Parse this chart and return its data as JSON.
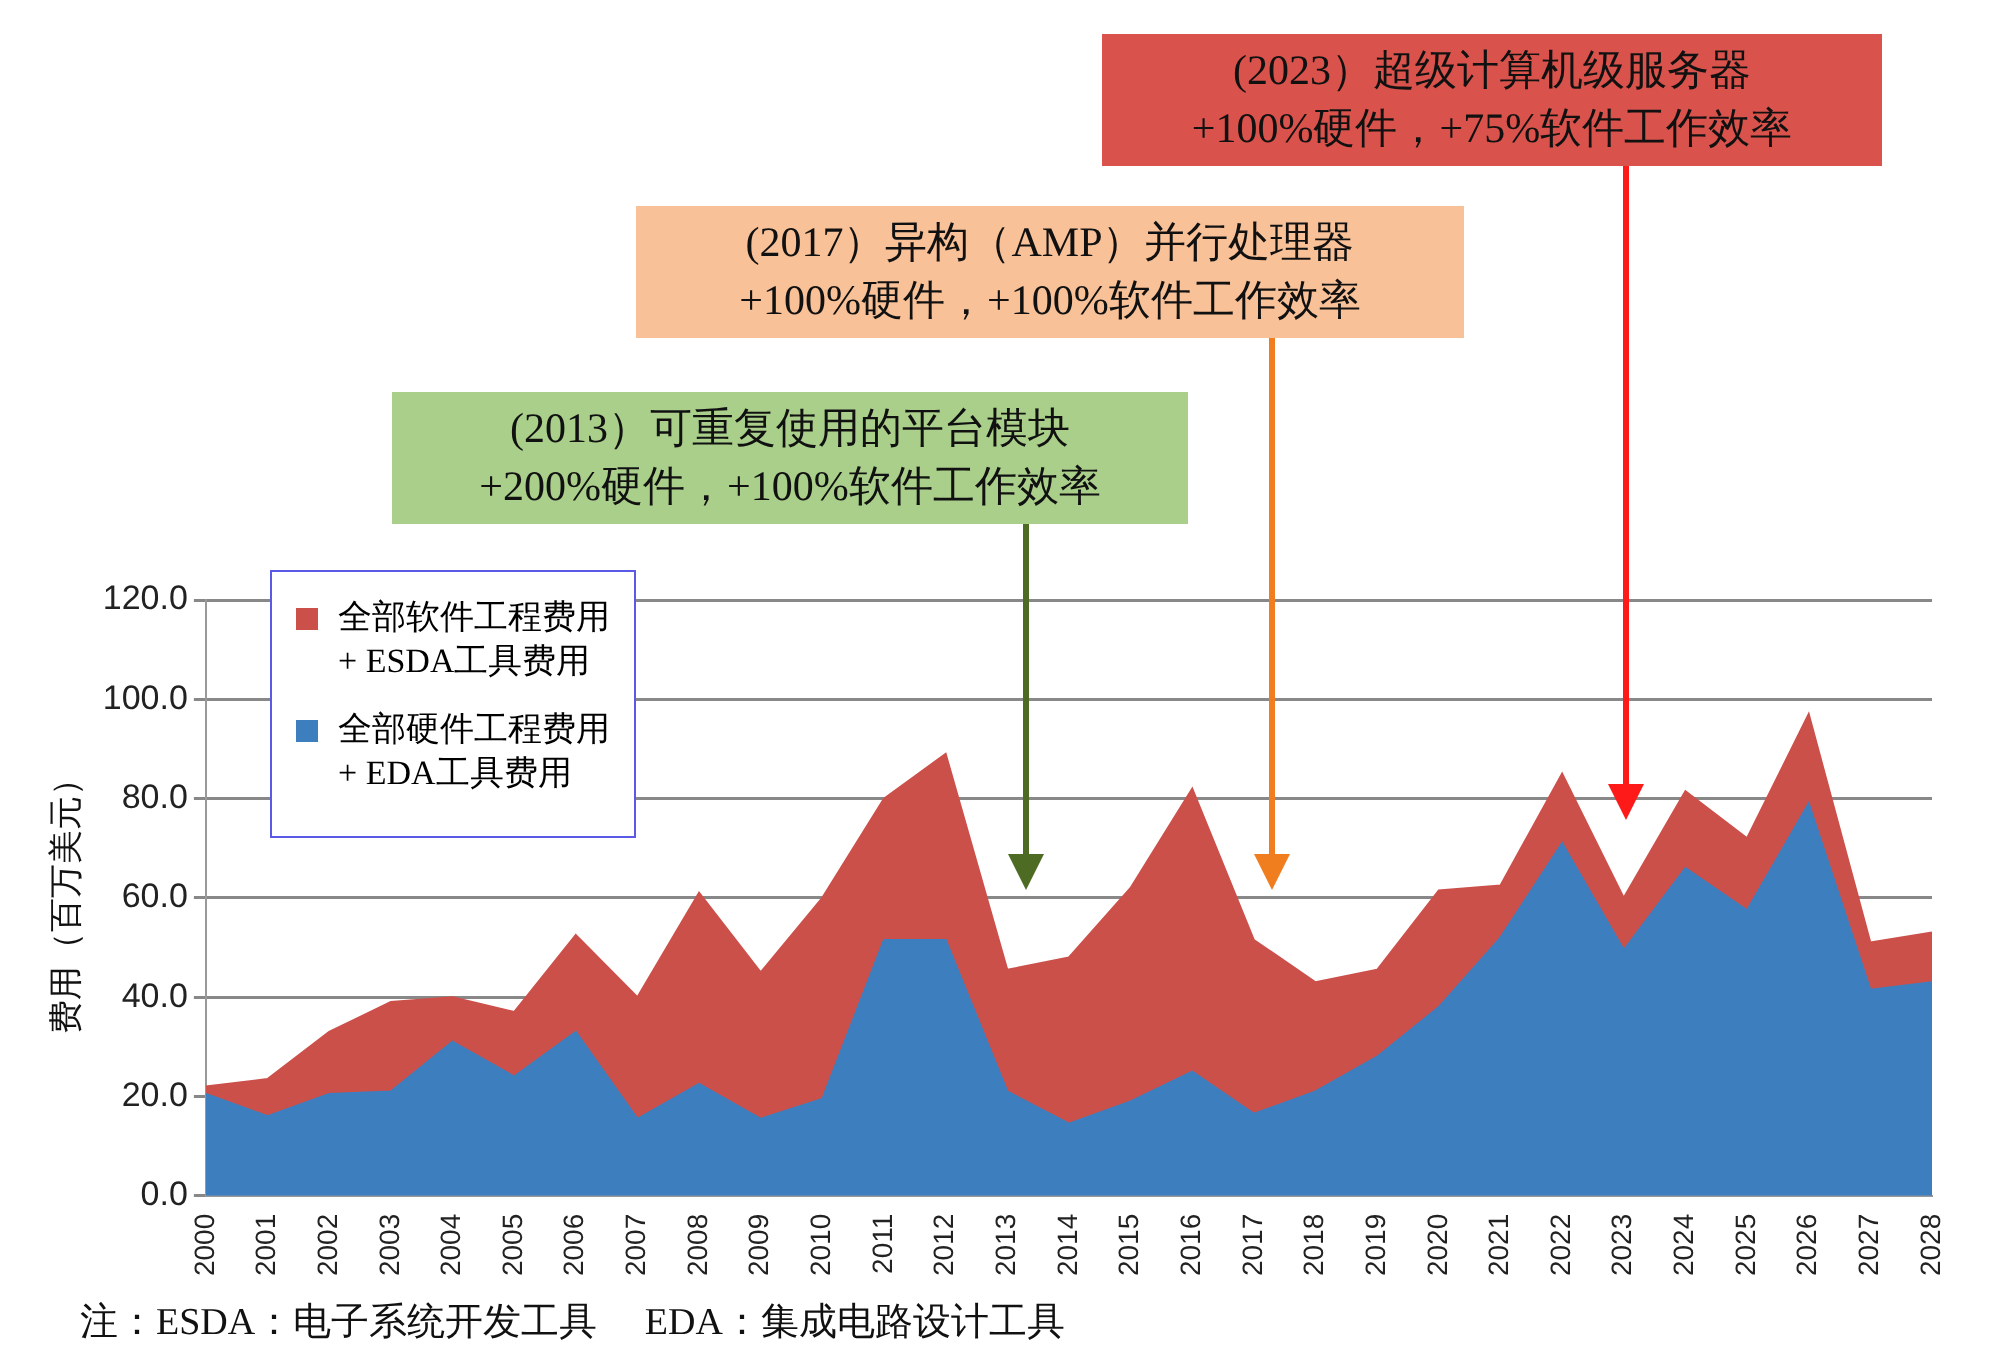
{
  "chart_data": {
    "type": "area",
    "stacked": true,
    "ylabel": "费用（百万美元）",
    "categories": [
      "2000",
      "2001",
      "2002",
      "2003",
      "2004",
      "2005",
      "2006",
      "2007",
      "2008",
      "2009",
      "2010",
      "2011",
      "2012",
      "2013",
      "2014",
      "2015",
      "2016",
      "2017",
      "2018",
      "2019",
      "2020",
      "2021",
      "2022",
      "2023",
      "2024",
      "2025",
      "2026",
      "2027",
      "2028"
    ],
    "series": [
      {
        "name": "全部硬件工程费用\n+ EDA工具费用",
        "color": "#3d7ebf",
        "values": [
          20.5,
          16,
          20.5,
          21,
          31,
          24,
          33,
          15.5,
          22.5,
          15.5,
          19.5,
          51.5,
          51.5,
          21,
          14.5,
          19,
          25,
          16.5,
          21,
          28,
          38,
          52,
          71,
          49.5,
          66,
          57.5,
          79,
          41.5,
          43
        ]
      },
      {
        "name": "全部软件工程费用\n+ ESDA工具费用",
        "color": "#cc504a",
        "values": [
          1.5,
          7.5,
          12.5,
          18,
          9,
          13,
          19.5,
          24.5,
          38.5,
          29.5,
          40.5,
          28.5,
          37.5,
          24.5,
          33.5,
          43,
          57,
          35,
          22,
          17.5,
          23.5,
          10.5,
          14,
          10.5,
          15.5,
          14.5,
          18,
          9.5,
          10
        ]
      }
    ],
    "ylim": [
      0,
      120
    ],
    "yticks": [
      {
        "value": 0,
        "label": "0.0"
      },
      {
        "value": 20,
        "label": "20.0"
      },
      {
        "value": 40,
        "label": "40.0"
      },
      {
        "value": 60,
        "label": "60.0"
      },
      {
        "value": 80,
        "label": "80.0"
      },
      {
        "value": 100,
        "label": "100.0"
      },
      {
        "value": 120,
        "label": "120.0"
      }
    ],
    "grid": "y",
    "legend": "top left",
    "annotations": [
      "(2013）可重复使用的平台模块\n+200%硬件，+100%软件工作效率",
      "(2017）异构（AMP）并行处理器\n+100%硬件，+100%软件工作效率",
      "(2023）超级计算机级服务器\n+100%硬件，+75%软件工作效率",
      "注：ESDA：电子系统开发工具　 EDA：集成电路设计工具"
    ]
  }
}
